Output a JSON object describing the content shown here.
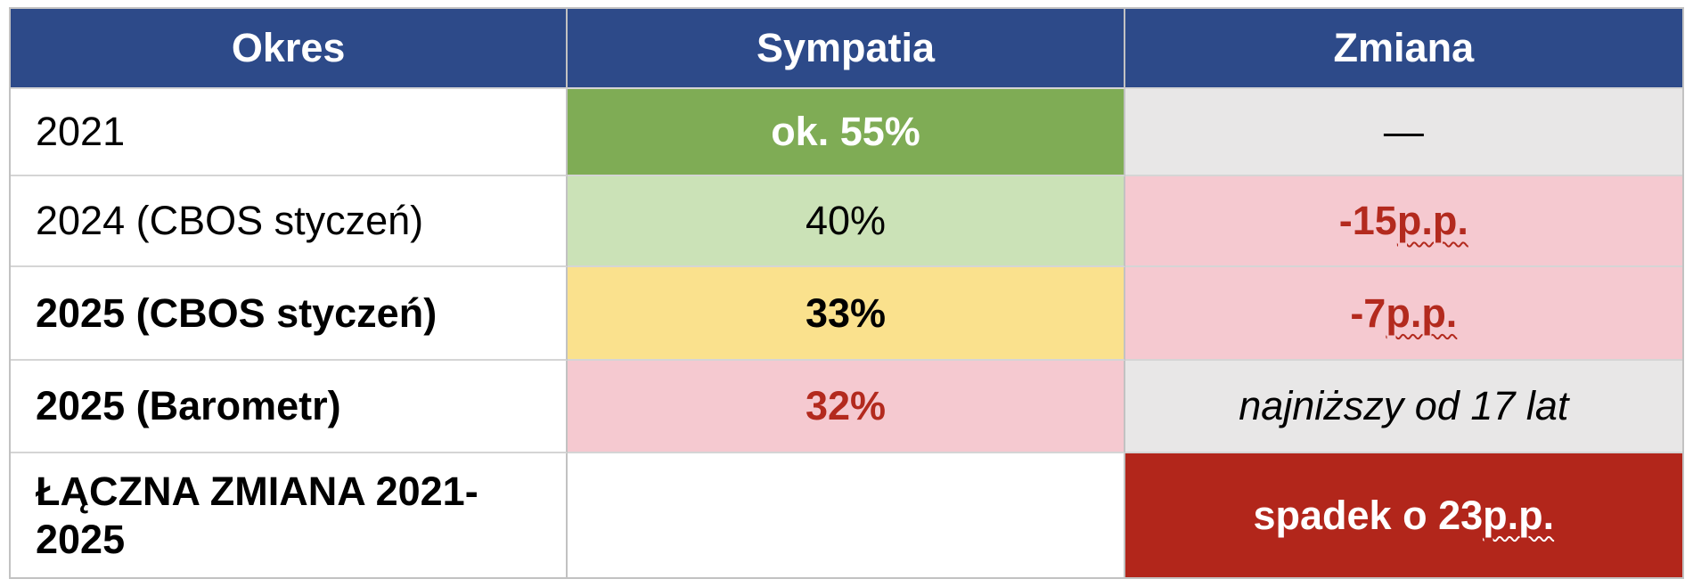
{
  "colors": {
    "header-bg": "#2D4A89",
    "header-text": "#FFFFFF",
    "green-strong": "#7FAC55",
    "green-light": "#CBE2B7",
    "yellow": "#FAE18D",
    "pink": "#F5C9D0",
    "gray": "#E8E7E7",
    "dark-red": "#B2261B",
    "red-text": "#B32A1E",
    "border-v": "#C2C2C2",
    "border-h": "#D5D5D5"
  },
  "table": {
    "headers": [
      "Okres",
      "Sympatia",
      "Zmiana"
    ],
    "rows": [
      {
        "okres": "2021",
        "sympatia": "ok. 55%",
        "zmiana": "—"
      },
      {
        "okres": "2024 (CBOS styczeń)",
        "sympatia": "40%",
        "zmiana_prefix": "-15 ",
        "zmiana_squiggle": "p.p."
      },
      {
        "okres": "2025 (CBOS styczeń)",
        "sympatia": "33%",
        "zmiana_prefix": "-7 ",
        "zmiana_squiggle": "p.p."
      },
      {
        "okres": "2025 (Barometr)",
        "sympatia": "32%",
        "zmiana": "najniższy od 17 lat"
      },
      {
        "okres": "ŁĄCZNA ZMIANA 2021-2025",
        "sympatia": "",
        "zmiana_prefix": "spadek o 23 ",
        "zmiana_squiggle": "p.p."
      }
    ]
  }
}
